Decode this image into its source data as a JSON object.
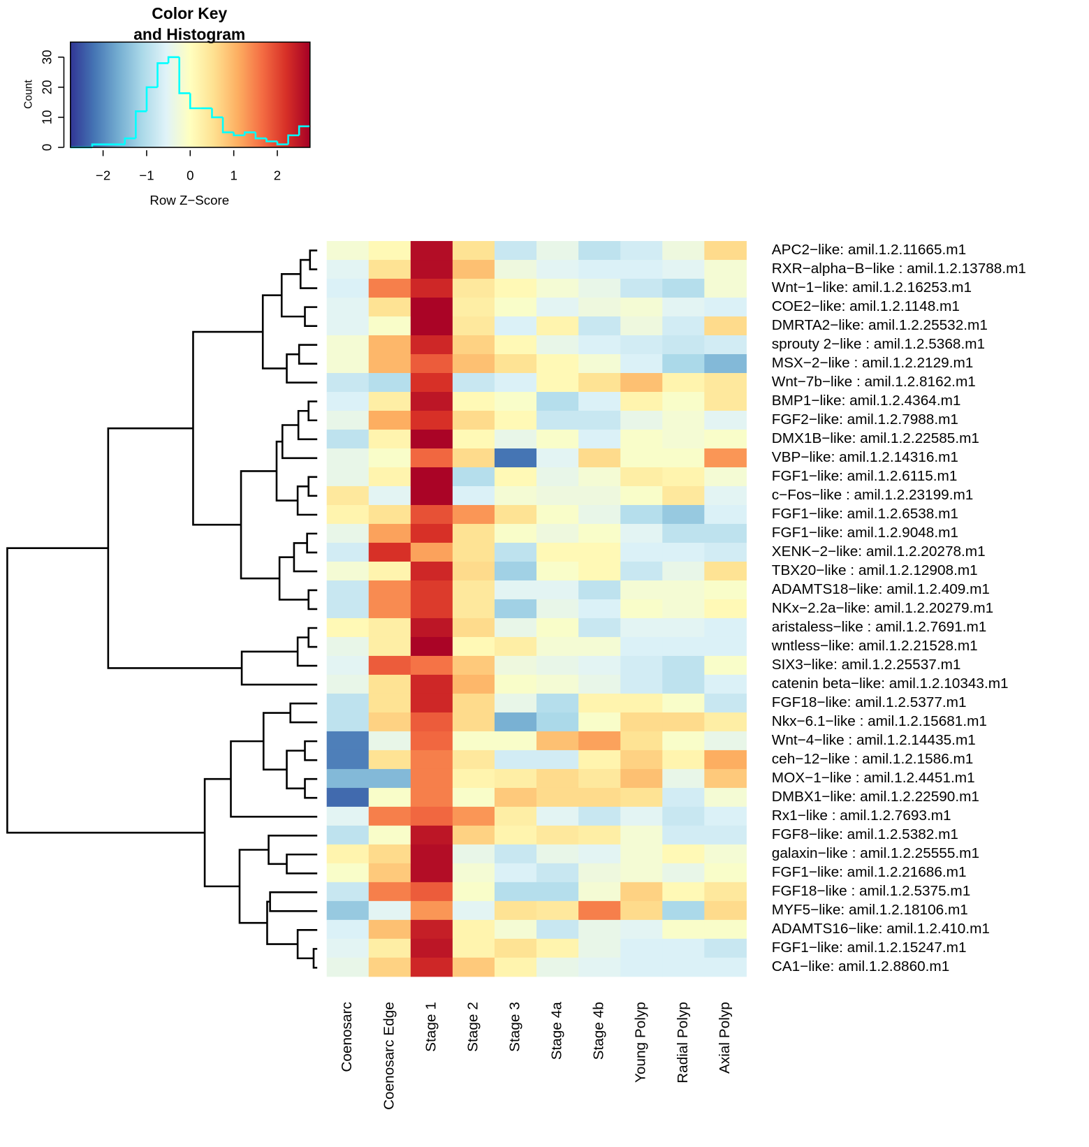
{
  "chart_data": [
    {
      "type": "histogram",
      "title_lines": [
        "Color Key",
        "and Histogram"
      ],
      "x_label": "Row Z−Score",
      "y_label": "Count",
      "bins": [
        -2.75,
        -2.5,
        -2.25,
        -2,
        -1.75,
        -1.5,
        -1.25,
        -1,
        -0.75,
        -0.5,
        -0.25,
        0,
        0.25,
        0.5,
        0.75,
        1,
        1.25,
        1.5,
        1.75,
        2,
        2.25,
        2.5,
        2.75
      ],
      "counts": [
        0,
        0,
        1,
        1,
        1,
        3,
        12,
        20,
        28,
        30,
        18,
        13,
        13,
        10,
        5,
        4,
        5,
        3,
        2,
        1,
        4,
        7
      ],
      "color": "#00ffff",
      "xlim": [
        -2.75,
        2.75
      ],
      "ylim": [
        0,
        35
      ],
      "xticks": [
        {
          "value": -2,
          "label": "−2"
        },
        {
          "value": -1,
          "label": "−1"
        },
        0,
        1,
        2
      ],
      "yticks": [
        0,
        10,
        20,
        30
      ],
      "colors": [
        "#313695",
        "#4575b4",
        "#74add1",
        "#abd9e9",
        "#e0f3f8",
        "#ffffbf",
        "#fee090",
        "#fdae61",
        "#f46d43",
        "#d73027",
        "#a50026"
      ]
    },
    {
      "type": "heatmap",
      "columns": [
        "Coenosarc",
        "Coenosarc Edge",
        "Stage 1",
        "Stage 2",
        "Stage 3",
        "Stage 4a",
        "Stage 4b",
        "Young Polyp",
        "Radial Polyp",
        "Axial Polyp"
      ],
      "rows": [
        "APC2−like: amil.1.2.11665.m1",
        "RXR−alpha−B−like : amil.1.2.13788.m1",
        "Wnt−1−like: amil.1.2.16253.m1",
        "COE2−like: amil.1.2.1148.m1",
        "DMRTA2−like: amil.1.2.25532.m1",
        "sprouty 2−like : amil.1.2.5368.m1",
        "MSX−2−like : amil.1.2.2129.m1",
        "Wnt−7b−like : amil.1.2.8162.m1",
        "BMP1−like: amil.1.2.4364.m1",
        "FGF2−like: amil.1.2.7988.m1",
        "DMX1B−like: amil.1.2.22585.m1",
        "VBP−like: amil.1.2.14316.m1",
        "FGF1−like: amil.1.2.6115.m1",
        "c−Fos−like : amil.1.2.23199.m1",
        "FGF1−like: amil.1.2.6538.m1",
        "FGF1−like: amil.1.2.9048.m1",
        "XENK−2−like: amil.1.2.20278.m1",
        "TBX20−like : amil.1.2.12908.m1",
        "ADAMTS18−like: amil.1.2.409.m1",
        "NKx−2.2a−like: amil.1.2.20279.m1",
        "aristaless−like : amil.1.2.7691.m1",
        "wntless−like: amil.1.2.21528.m1",
        "SIX3−like: amil.1.2.25537.m1",
        "catenin beta−like: amil.1.2.10343.m1",
        "FGF18−like: amil.1.2.5377.m1",
        "Nkx−6.1−like : amil.1.2.15681.m1",
        "Wnt−4−like : amil.1.2.14435.m1",
        "ceh−12−like : amil.1.2.1586.m1",
        "MOX−1−like : amil.1.2.4451.m1",
        "DMBX1−like: amil.1.2.22590.m1",
        "Rx1−like : amil.1.2.7693.m1",
        "FGF8−like: amil.1.2.5382.m1",
        "galaxin−like : amil.1.2.25555.m1",
        "FGF1−like: amil.1.2.21686.m1",
        "FGF18−like : amil.1.2.5375.m1",
        "MYF5−like: amil.1.2.18106.m1",
        "ADAMTS16−like: amil.1.2.410.m1",
        "FGF1−like: amil.1.2.15247.m1",
        "CA1−like: amil.1.2.8860.m1"
      ],
      "values": [
        [
          -0.2,
          0.1,
          2.6,
          0.5,
          -0.8,
          -0.4,
          -0.9,
          -0.7,
          -0.3,
          0.6
        ],
        [
          -0.5,
          0.5,
          2.6,
          0.9,
          -0.3,
          -0.5,
          -0.6,
          -0.6,
          -0.5,
          -0.2
        ],
        [
          -0.6,
          1.5,
          2.3,
          0.4,
          0.1,
          -0.2,
          -0.4,
          -0.8,
          -1.0,
          -0.2
        ],
        [
          -0.5,
          0.5,
          2.7,
          0.3,
          -0.1,
          -0.5,
          -0.3,
          -0.2,
          -0.5,
          -0.6
        ],
        [
          -0.5,
          -0.1,
          2.7,
          0.4,
          -0.6,
          0.2,
          -0.8,
          -0.3,
          -0.7,
          0.6
        ],
        [
          -0.2,
          1.0,
          2.3,
          0.7,
          0.1,
          -0.4,
          -0.6,
          -0.7,
          -0.8,
          -0.7
        ],
        [
          -0.2,
          1.0,
          1.8,
          0.9,
          0.5,
          0.1,
          -0.2,
          -0.6,
          -1.1,
          -1.5
        ],
        [
          -0.8,
          -1.0,
          2.2,
          -0.8,
          -0.6,
          0.1,
          0.5,
          0.9,
          0.2,
          0.4
        ],
        [
          -0.6,
          0.3,
          2.5,
          0.1,
          -0.1,
          -1.0,
          -0.6,
          0.2,
          -0.1,
          0.4
        ],
        [
          -0.4,
          1.1,
          2.2,
          0.6,
          0.1,
          -0.8,
          -0.8,
          -0.4,
          -0.2,
          -0.5
        ],
        [
          -0.9,
          0.2,
          2.7,
          0.1,
          -0.4,
          -0.1,
          -0.6,
          -0.1,
          -0.2,
          -0.1
        ],
        [
          -0.4,
          -0.1,
          1.7,
          0.6,
          -2.2,
          -0.5,
          0.6,
          -0.1,
          -0.1,
          1.3
        ],
        [
          -0.4,
          0.2,
          2.7,
          -1.0,
          0.1,
          -0.4,
          -0.2,
          0.3,
          0.2,
          -0.2
        ],
        [
          0.4,
          -0.5,
          2.7,
          -0.6,
          -0.2,
          -0.3,
          -0.3,
          -0.1,
          0.4,
          -0.5
        ],
        [
          0.2,
          0.5,
          1.9,
          1.3,
          0.5,
          -0.1,
          -0.4,
          -1.0,
          -1.3,
          -0.6
        ],
        [
          -0.4,
          1.2,
          2.2,
          0.5,
          -0.1,
          -0.3,
          -0.1,
          -0.5,
          -0.9,
          -0.9
        ],
        [
          -0.7,
          2.2,
          1.2,
          0.5,
          -0.9,
          0.1,
          0.1,
          -0.6,
          -0.6,
          -0.7
        ],
        [
          -0.2,
          0.2,
          2.3,
          0.6,
          -1.2,
          -0.1,
          0.1,
          -0.8,
          -0.4,
          0.5
        ],
        [
          -0.8,
          1.4,
          2.1,
          0.4,
          -0.5,
          -0.5,
          -0.9,
          -0.2,
          -0.2,
          -0.1
        ],
        [
          -0.8,
          1.4,
          2.1,
          0.4,
          -1.2,
          -0.4,
          -0.6,
          -0.1,
          -0.2,
          0.1
        ],
        [
          0.1,
          0.3,
          2.5,
          0.6,
          -0.4,
          -0.1,
          -0.8,
          -0.5,
          -0.5,
          -0.6
        ],
        [
          -0.4,
          0.3,
          2.7,
          0.1,
          0.3,
          -0.2,
          -0.2,
          -0.6,
          -0.6,
          -0.6
        ],
        [
          -0.5,
          1.8,
          1.6,
          0.8,
          -0.3,
          -0.4,
          -0.5,
          -0.7,
          -0.9,
          -0.1
        ],
        [
          -0.4,
          0.5,
          2.3,
          1.0,
          -0.1,
          -0.2,
          -0.4,
          -0.7,
          -0.9,
          -0.6
        ],
        [
          -0.9,
          0.5,
          2.3,
          0.6,
          -0.4,
          -1.0,
          0.2,
          0.2,
          -0.1,
          -0.8
        ],
        [
          -0.9,
          0.7,
          1.8,
          0.6,
          -1.6,
          -1.1,
          -0.1,
          0.6,
          0.6,
          0.3
        ],
        [
          -2.1,
          -0.4,
          1.7,
          -0.1,
          -0.1,
          0.9,
          1.2,
          0.5,
          -0.1,
          -0.4
        ],
        [
          -2.1,
          0.5,
          1.5,
          0.4,
          -0.7,
          -0.7,
          0.2,
          0.7,
          0.2,
          1.1
        ],
        [
          -1.5,
          -1.5,
          1.5,
          0.2,
          0.3,
          0.6,
          0.4,
          0.9,
          -0.4,
          0.8
        ],
        [
          -2.3,
          -0.1,
          1.5,
          -0.1,
          0.8,
          0.6,
          0.6,
          0.5,
          -0.7,
          -0.2
        ],
        [
          -0.5,
          1.5,
          1.7,
          1.3,
          0.3,
          -0.5,
          -0.8,
          -0.5,
          -0.8,
          -0.6
        ],
        [
          -0.9,
          -0.1,
          2.5,
          0.7,
          0.2,
          0.4,
          0.3,
          -0.2,
          -0.7,
          -0.7
        ],
        [
          0.2,
          0.6,
          2.6,
          -0.4,
          -0.8,
          -0.4,
          -0.5,
          -0.2,
          0.1,
          -0.2
        ],
        [
          -0.1,
          0.8,
          2.6,
          -0.2,
          -0.6,
          -0.8,
          -0.3,
          -0.2,
          -0.4,
          -0.1
        ],
        [
          -0.8,
          1.5,
          1.8,
          -0.1,
          -1.0,
          -1.0,
          -0.2,
          0.7,
          0.1,
          0.4
        ],
        [
          -1.3,
          -0.5,
          1.3,
          -0.5,
          0.5,
          0.4,
          1.5,
          0.6,
          -1.1,
          0.6
        ],
        [
          -0.6,
          0.9,
          2.4,
          0.2,
          -0.2,
          -0.8,
          -0.4,
          -0.5,
          -0.1,
          -0.1
        ],
        [
          -0.5,
          0.3,
          2.5,
          0.2,
          0.5,
          0.2,
          -0.4,
          -0.6,
          -0.6,
          -0.8
        ],
        [
          -0.4,
          0.7,
          2.3,
          0.8,
          0.2,
          -0.4,
          -0.5,
          -0.6,
          -0.6,
          -0.6
        ]
      ]
    }
  ]
}
